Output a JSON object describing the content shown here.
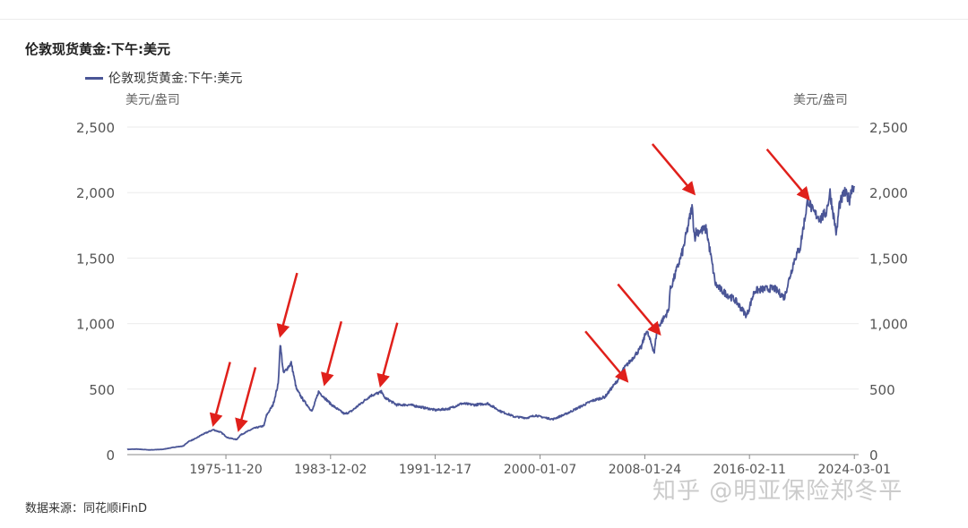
{
  "title": "伦敦现货黄金:下午:美元",
  "legend_label": "伦敦现货黄金:下午:美元",
  "unit_left": "美元/盎司",
  "unit_right": "美元/盎司",
  "source": "数据来源：同花顺iFinD",
  "watermark": "知乎 @明亚保险郑冬平",
  "colors": {
    "series": "#4a5596",
    "arrow": "#e0201b",
    "grid": "#ebebeb"
  },
  "chart_data": {
    "type": "line",
    "title": "伦敦现货黄金:下午:美元",
    "ylabel": "美元/盎司",
    "ylim": [
      0,
      2500
    ],
    "yticks": [
      0,
      500,
      1000,
      1500,
      2000,
      2500
    ],
    "ytick_labels": [
      "0",
      "500",
      "1,000",
      "1,500",
      "2,000",
      "2,500"
    ],
    "xlim": [
      1968.3,
      2024.5
    ],
    "xticks": [
      {
        "label": "1975-11-20",
        "x": 1975.88
      },
      {
        "label": "1983-12-02",
        "x": 1983.92
      },
      {
        "label": "1991-12-17",
        "x": 1991.96
      },
      {
        "label": "2000-01-07",
        "x": 2000.02
      },
      {
        "label": "2008-01-24",
        "x": 2008.07
      },
      {
        "label": "2016-02-11",
        "x": 2016.11
      },
      {
        "label": "2024-03-01",
        "x": 2024.17
      }
    ],
    "grid": true,
    "series": [
      {
        "name": "伦敦现货黄金:下午:美元",
        "x": [
          1968.3,
          1969,
          1970,
          1971,
          1972,
          1972.6,
          1973,
          1973.5,
          1974,
          1974.9,
          1975.5,
          1976,
          1976.7,
          1977,
          1978,
          1978.8,
          1979,
          1979.5,
          1979.9,
          1980.05,
          1980.3,
          1980.6,
          1980.9,
          1981.3,
          1981.8,
          1982.5,
          1983,
          1983.6,
          1984,
          1985,
          1985.5,
          1986,
          1987,
          1987.9,
          1988,
          1989,
          1990,
          1991,
          1992,
          1993,
          1994,
          1995,
          1996,
          1997,
          1997.8,
          1998,
          1999,
          1999.7,
          2000,
          2001,
          2002,
          2003,
          2004,
          2005,
          2006,
          2006.4,
          2007,
          2007.8,
          2008.2,
          2008.8,
          2009,
          2009.9,
          2010,
          2011,
          2011.7,
          2011.9,
          2012,
          2012.8,
          2013,
          2013.5,
          2014,
          2015,
          2015.9,
          2016.5,
          2017,
          2018,
          2018.8,
          2019,
          2019.6,
          2020,
          2020.6,
          2021,
          2021.6,
          2022,
          2022.3,
          2022.8,
          2023,
          2023.4,
          2023.8,
          2024,
          2024.17
        ],
        "values": [
          40,
          42,
          36,
          40,
          58,
          65,
          100,
          120,
          150,
          190,
          170,
          130,
          115,
          150,
          200,
          220,
          300,
          380,
          540,
          850,
          620,
          660,
          700,
          500,
          420,
          330,
          480,
          420,
          380,
          310,
          330,
          370,
          450,
          480,
          440,
          380,
          380,
          360,
          340,
          350,
          390,
          380,
          390,
          330,
          300,
          290,
          280,
          300,
          290,
          270,
          310,
          360,
          410,
          440,
          570,
          650,
          720,
          820,
          950,
          780,
          960,
          1100,
          1250,
          1560,
          1890,
          1650,
          1700,
          1720,
          1600,
          1300,
          1250,
          1180,
          1060,
          1250,
          1260,
          1270,
          1200,
          1280,
          1500,
          1580,
          1950,
          1850,
          1800,
          1850,
          2000,
          1680,
          1900,
          2000,
          1950,
          2050,
          2050
        ]
      }
    ],
    "annotations": [
      {
        "type": "arrow",
        "year": 1974.95,
        "value": 190
      },
      {
        "type": "arrow",
        "year": 1976.9,
        "value": 150
      },
      {
        "type": "arrow",
        "year": 1980.1,
        "value": 870
      },
      {
        "type": "arrow",
        "year": 1983.5,
        "value": 500
      },
      {
        "type": "arrow",
        "year": 1987.8,
        "value": 490
      },
      {
        "type": "arrow",
        "year": 2006.6,
        "value": 520
      },
      {
        "type": "arrow",
        "year": 2009.1,
        "value": 880
      },
      {
        "type": "arrow",
        "year": 2011.75,
        "value": 1950
      },
      {
        "type": "arrow",
        "year": 2020.55,
        "value": 1910
      }
    ]
  }
}
